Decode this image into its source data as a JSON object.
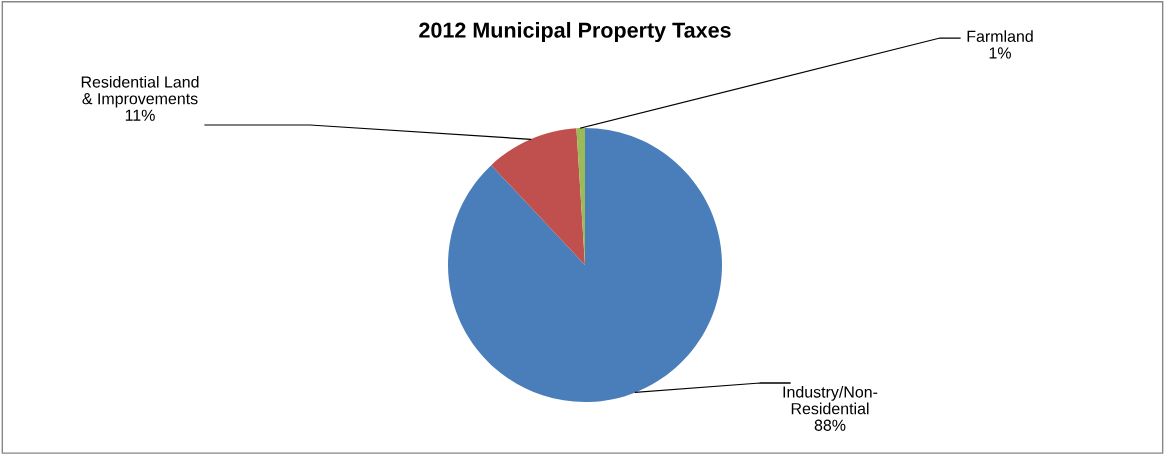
{
  "chart_data": {
    "type": "pie",
    "title": "2012 Municipal Property Taxes",
    "categories": [
      "Industry/Non-Residential",
      "Residential Land & Improvements",
      "Farmland"
    ],
    "values": [
      88,
      11,
      1
    ],
    "colors": [
      "#4a7ebb",
      "#c0504d",
      "#9bbb59"
    ],
    "value_labels": [
      "88%",
      "11%",
      "1%"
    ],
    "legend": false
  }
}
